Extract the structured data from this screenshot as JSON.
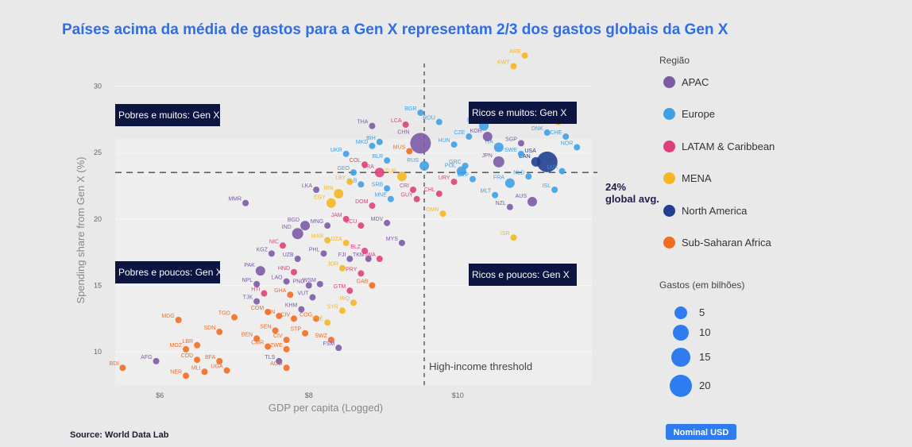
{
  "title": "Países acima da média de gastos para a Gen X representam 2/3 dos gastos globais da Gen X",
  "source": "Source: World Data Lab",
  "nominal_button": "Nominal USD",
  "quadrants": {
    "top_left": "Pobres e muitos: Gen X",
    "top_right": "Ricos e muitos: Gen X",
    "bottom_left": "Pobres e poucos: Gen X",
    "bottom_right": "Ricos e poucos: Gen X"
  },
  "annotations": {
    "avg_line1": "24%",
    "avg_line2": "global avg.",
    "threshold": "High-income threshold"
  },
  "legend": {
    "region_title": "Região",
    "size_title": "Gastos (em bilhões)",
    "regions": [
      {
        "name": "APAC",
        "color": "#7b5aa6"
      },
      {
        "name": "Europe",
        "color": "#3ea0e6"
      },
      {
        "name": "LATAM & Caribbean",
        "color": "#e0407a"
      },
      {
        "name": "MENA",
        "color": "#f5b623"
      },
      {
        "name": "North America",
        "color": "#1f3f8f"
      },
      {
        "name": "Sub-Saharan Africa",
        "color": "#f26b21"
      }
    ],
    "sizes": [
      "5",
      "10",
      "15",
      "20"
    ]
  },
  "chart_data": {
    "type": "scatter",
    "xlabel": "GDP per capita (Logged)",
    "ylabel": "Spending share from Gen X (%)",
    "xlim": [
      5.4,
      11.8
    ],
    "ylim": [
      7.5,
      32
    ],
    "xticks": [
      {
        "v": 6,
        "label": "$6"
      },
      {
        "v": 8,
        "label": "$8"
      },
      {
        "v": 10,
        "label": "$10"
      }
    ],
    "yticks": [
      10,
      15,
      20,
      25,
      30
    ],
    "avg_y": 23.5,
    "threshold_x": 9.55,
    "points": [
      {
        "l": "ARE",
        "x": 10.9,
        "y": 32.3,
        "r": "MENA",
        "s": 1
      },
      {
        "l": "KWT",
        "x": 10.75,
        "y": 31.5,
        "r": "MENA",
        "s": 1
      },
      {
        "l": "QAT",
        "x": 11.35,
        "y": 27.3,
        "r": "MENA",
        "s": 1
      },
      {
        "l": "DNK",
        "x": 11.2,
        "y": 26.5,
        "r": "Europe",
        "s": 1
      },
      {
        "l": "CHE",
        "x": 11.45,
        "y": 26.2,
        "r": "Europe",
        "s": 1
      },
      {
        "l": "NOR",
        "x": 11.6,
        "y": 25.4,
        "r": "Europe",
        "s": 1
      },
      {
        "l": "USA",
        "x": 11.2,
        "y": 24.3,
        "r": "North America",
        "s": 5
      },
      {
        "l": "CAN",
        "x": 11.05,
        "y": 24.3,
        "r": "North America",
        "s": 2
      },
      {
        "l": "LUX",
        "x": 11.4,
        "y": 23.6,
        "r": "Europe",
        "s": 1
      },
      {
        "l": "ISL",
        "x": 11.3,
        "y": 22.2,
        "r": "Europe",
        "s": 1
      },
      {
        "l": "AUS",
        "x": 11.0,
        "y": 21.3,
        "r": "APAC",
        "s": 2
      },
      {
        "l": "NZL",
        "x": 10.7,
        "y": 20.9,
        "r": "APAC",
        "s": 1
      },
      {
        "l": "ISR",
        "x": 10.75,
        "y": 18.6,
        "r": "MENA",
        "s": 1
      },
      {
        "l": "NLD",
        "x": 10.95,
        "y": 23.2,
        "r": "Europe",
        "s": 1
      },
      {
        "l": "FRA",
        "x": 10.7,
        "y": 22.7,
        "r": "Europe",
        "s": 2
      },
      {
        "l": "MLT",
        "x": 10.5,
        "y": 21.8,
        "r": "Europe",
        "s": 1
      },
      {
        "l": "ITA",
        "x": 10.55,
        "y": 25.4,
        "r": "Europe",
        "s": 2
      },
      {
        "l": "SGP",
        "x": 10.85,
        "y": 25.7,
        "r": "APAC",
        "s": 1
      },
      {
        "l": "SWE",
        "x": 10.85,
        "y": 24.9,
        "r": "Europe",
        "s": 1
      },
      {
        "l": "JPN",
        "x": 10.55,
        "y": 24.3,
        "r": "APAC",
        "s": 3
      },
      {
        "l": "KOR",
        "x": 10.4,
        "y": 26.2,
        "r": "APAC",
        "s": 2
      },
      {
        "l": "ESP",
        "x": 10.35,
        "y": 27.0,
        "r": "Europe",
        "s": 2
      },
      {
        "l": "CZE",
        "x": 10.15,
        "y": 26.2,
        "r": "Europe",
        "s": 1
      },
      {
        "l": "HUN",
        "x": 9.95,
        "y": 25.6,
        "r": "Europe",
        "s": 1
      },
      {
        "l": "POL",
        "x": 10.05,
        "y": 23.6,
        "r": "Europe",
        "s": 2
      },
      {
        "l": "CYP",
        "x": 10.2,
        "y": 23.0,
        "r": "Europe",
        "s": 1
      },
      {
        "l": "GRC",
        "x": 10.1,
        "y": 24.0,
        "r": "Europe",
        "s": 1
      },
      {
        "l": "URY",
        "x": 9.95,
        "y": 22.8,
        "r": "LATAM & Caribbean",
        "s": 1
      },
      {
        "l": "CHL",
        "x": 9.75,
        "y": 21.9,
        "r": "LATAM & Caribbean",
        "s": 1
      },
      {
        "l": "OMN",
        "x": 9.8,
        "y": 20.4,
        "r": "MENA",
        "s": 1
      },
      {
        "l": "RUS",
        "x": 9.55,
        "y": 24.0,
        "r": "Europe",
        "s": 2
      },
      {
        "l": "ROU",
        "x": 9.75,
        "y": 27.3,
        "r": "Europe",
        "s": 1
      },
      {
        "l": "BGR",
        "x": 9.5,
        "y": 28.0,
        "r": "Europe",
        "s": 1
      },
      {
        "l": "LCA",
        "x": 9.3,
        "y": 27.1,
        "r": "LATAM & Caribbean",
        "s": 1
      },
      {
        "l": "CHN",
        "x": 9.5,
        "y": 25.7,
        "r": "APAC",
        "s": 5
      },
      {
        "l": "MUS",
        "x": 9.35,
        "y": 25.1,
        "r": "Sub-Saharan Africa",
        "s": 1
      },
      {
        "l": "TUR",
        "x": 9.25,
        "y": 23.2,
        "r": "MENA",
        "s": 2
      },
      {
        "l": "CRI",
        "x": 9.4,
        "y": 22.2,
        "r": "LATAM & Caribbean",
        "s": 1
      },
      {
        "l": "GUY",
        "x": 9.45,
        "y": 21.5,
        "r": "LATAM & Caribbean",
        "s": 1
      },
      {
        "l": "MNE",
        "x": 9.1,
        "y": 21.5,
        "r": "Europe",
        "s": 1
      },
      {
        "l": "SRB",
        "x": 9.05,
        "y": 22.3,
        "r": "Europe",
        "s": 1
      },
      {
        "l": "BLR",
        "x": 9.05,
        "y": 24.4,
        "r": "Europe",
        "s": 1
      },
      {
        "l": "BIH",
        "x": 8.95,
        "y": 25.8,
        "r": "Europe",
        "s": 1
      },
      {
        "l": "MKD",
        "x": 8.85,
        "y": 25.5,
        "r": "Europe",
        "s": 1
      },
      {
        "l": "THA",
        "x": 8.85,
        "y": 27.0,
        "r": "APAC",
        "s": 1
      },
      {
        "l": "UKR",
        "x": 8.5,
        "y": 24.9,
        "r": "Europe",
        "s": 1
      },
      {
        "l": "COL",
        "x": 8.75,
        "y": 24.1,
        "r": "LATAM & Caribbean",
        "s": 1
      },
      {
        "l": "BRA",
        "x": 8.95,
        "y": 23.5,
        "r": "LATAM & Caribbean",
        "s": 2
      },
      {
        "l": "GEO",
        "x": 8.6,
        "y": 23.5,
        "r": "Europe",
        "s": 1
      },
      {
        "l": "ALB",
        "x": 8.7,
        "y": 22.6,
        "r": "Europe",
        "s": 1
      },
      {
        "l": "LBY",
        "x": 8.55,
        "y": 22.8,
        "r": "MENA",
        "s": 1
      },
      {
        "l": "DOM",
        "x": 8.85,
        "y": 21.0,
        "r": "LATAM & Caribbean",
        "s": 1
      },
      {
        "l": "ECU",
        "x": 8.7,
        "y": 19.5,
        "r": "LATAM & Caribbean",
        "s": 1
      },
      {
        "l": "MDV",
        "x": 9.05,
        "y": 19.7,
        "r": "APAC",
        "s": 1
      },
      {
        "l": "MYS",
        "x": 9.25,
        "y": 18.2,
        "r": "APAC",
        "s": 1
      },
      {
        "l": "MMR",
        "x": 7.15,
        "y": 21.2,
        "r": "APAC",
        "s": 1
      },
      {
        "l": "LKA",
        "x": 8.1,
        "y": 22.2,
        "r": "APAC",
        "s": 1
      },
      {
        "l": "IRN",
        "x": 8.4,
        "y": 21.9,
        "r": "MENA",
        "s": 2
      },
      {
        "l": "EGY",
        "x": 8.3,
        "y": 21.2,
        "r": "MENA",
        "s": 2
      },
      {
        "l": "JAM",
        "x": 8.5,
        "y": 20.0,
        "r": "LATAM & Caribbean",
        "s": 1
      },
      {
        "l": "BGD",
        "x": 7.95,
        "y": 19.5,
        "r": "APAC",
        "s": 2
      },
      {
        "l": "IND",
        "x": 7.85,
        "y": 18.9,
        "r": "APAC",
        "s": 3
      },
      {
        "l": "MNG",
        "x": 8.25,
        "y": 19.5,
        "r": "APAC",
        "s": 1
      },
      {
        "l": "MAR",
        "x": 8.25,
        "y": 18.4,
        "r": "MENA",
        "s": 1
      },
      {
        "l": "DZA",
        "x": 8.5,
        "y": 18.2,
        "r": "MENA",
        "s": 1
      },
      {
        "l": "BLZ",
        "x": 8.75,
        "y": 17.6,
        "r": "LATAM & Caribbean",
        "s": 1
      },
      {
        "l": "NIC",
        "x": 7.65,
        "y": 18.0,
        "r": "LATAM & Caribbean",
        "s": 1
      },
      {
        "l": "KGZ",
        "x": 7.5,
        "y": 17.4,
        "r": "APAC",
        "s": 1
      },
      {
        "l": "UZB",
        "x": 7.85,
        "y": 17.0,
        "r": "APAC",
        "s": 1
      },
      {
        "l": "PHL",
        "x": 8.2,
        "y": 17.4,
        "r": "APAC",
        "s": 1
      },
      {
        "l": "FJI",
        "x": 8.55,
        "y": 17.0,
        "r": "APAC",
        "s": 1
      },
      {
        "l": "TKM",
        "x": 8.8,
        "y": 17.0,
        "r": "APAC",
        "s": 1
      },
      {
        "l": "IWA",
        "x": 8.95,
        "y": 17.0,
        "r": "LATAM & Caribbean",
        "s": 1
      },
      {
        "l": "PAK",
        "x": 7.35,
        "y": 16.1,
        "r": "APAC",
        "s": 2
      },
      {
        "l": "HND",
        "x": 7.8,
        "y": 16.0,
        "r": "LATAM & Caribbean",
        "s": 1
      },
      {
        "l": "JOR",
        "x": 8.45,
        "y": 16.3,
        "r": "MENA",
        "s": 1
      },
      {
        "l": "PRY",
        "x": 8.7,
        "y": 15.9,
        "r": "LATAM & Caribbean",
        "s": 1
      },
      {
        "l": "NPL",
        "x": 7.3,
        "y": 15.1,
        "r": "APAC",
        "s": 1
      },
      {
        "l": "LAO",
        "x": 7.7,
        "y": 15.3,
        "r": "APAC",
        "s": 1
      },
      {
        "l": "PNG",
        "x": 8.0,
        "y": 15.0,
        "r": "APAC",
        "s": 1
      },
      {
        "l": "WSM",
        "x": 8.15,
        "y": 15.1,
        "r": "APAC",
        "s": 1
      },
      {
        "l": "GAB",
        "x": 8.85,
        "y": 15.0,
        "r": "Sub-Saharan Africa",
        "s": 1
      },
      {
        "l": "GTM",
        "x": 8.55,
        "y": 14.6,
        "r": "LATAM & Caribbean",
        "s": 1
      },
      {
        "l": "HTI",
        "x": 7.4,
        "y": 14.4,
        "r": "LATAM & Caribbean",
        "s": 1
      },
      {
        "l": "GHA",
        "x": 7.75,
        "y": 14.3,
        "r": "Sub-Saharan Africa",
        "s": 1
      },
      {
        "l": "VUT",
        "x": 8.05,
        "y": 14.1,
        "r": "APAC",
        "s": 1
      },
      {
        "l": "TJK",
        "x": 7.3,
        "y": 13.8,
        "r": "APAC",
        "s": 1
      },
      {
        "l": "IRQ",
        "x": 8.6,
        "y": 13.7,
        "r": "MENA",
        "s": 1
      },
      {
        "l": "KHM",
        "x": 7.9,
        "y": 13.2,
        "r": "APAC",
        "s": 1
      },
      {
        "l": "COM",
        "x": 7.45,
        "y": 13.0,
        "r": "Sub-Saharan Africa",
        "s": 1
      },
      {
        "l": "GIN",
        "x": 7.6,
        "y": 12.7,
        "r": "Sub-Saharan Africa",
        "s": 1
      },
      {
        "l": "CIV",
        "x": 7.8,
        "y": 12.5,
        "r": "Sub-Saharan Africa",
        "s": 1
      },
      {
        "l": "SYR",
        "x": 8.45,
        "y": 13.1,
        "r": "MENA",
        "s": 1
      },
      {
        "l": "COG",
        "x": 8.1,
        "y": 12.5,
        "r": "Sub-Saharan Africa",
        "s": 1
      },
      {
        "l": "PSE",
        "x": 8.25,
        "y": 12.2,
        "r": "MENA",
        "s": 1
      },
      {
        "l": "TGO",
        "x": 7.0,
        "y": 12.6,
        "r": "Sub-Saharan Africa",
        "s": 1
      },
      {
        "l": "MDG",
        "x": 6.25,
        "y": 12.4,
        "r": "Sub-Saharan Africa",
        "s": 1
      },
      {
        "l": "SDN",
        "x": 6.8,
        "y": 11.5,
        "r": "Sub-Saharan Africa",
        "s": 1
      },
      {
        "l": "SEN",
        "x": 7.55,
        "y": 11.6,
        "r": "Sub-Saharan Africa",
        "s": 1
      },
      {
        "l": "STP",
        "x": 7.95,
        "y": 11.4,
        "r": "Sub-Saharan Africa",
        "s": 1
      },
      {
        "l": "BEN",
        "x": 7.3,
        "y": 11.0,
        "r": "Sub-Saharan Africa",
        "s": 1
      },
      {
        "l": "CIV2",
        "x": 7.7,
        "y": 10.9,
        "r": "Sub-Saharan Africa",
        "s": 1
      },
      {
        "l": "SWZ",
        "x": 8.3,
        "y": 10.9,
        "r": "Sub-Saharan Africa",
        "s": 1
      },
      {
        "l": "CMR",
        "x": 7.45,
        "y": 10.4,
        "r": "Sub-Saharan Africa",
        "s": 1
      },
      {
        "l": "ZWE",
        "x": 7.7,
        "y": 10.2,
        "r": "Sub-Saharan Africa",
        "s": 1
      },
      {
        "l": "FSM",
        "x": 8.4,
        "y": 10.3,
        "r": "APAC",
        "s": 1
      },
      {
        "l": "LBR",
        "x": 6.5,
        "y": 10.5,
        "r": "Sub-Saharan Africa",
        "s": 1
      },
      {
        "l": "MOZ",
        "x": 6.35,
        "y": 10.2,
        "r": "Sub-Saharan Africa",
        "s": 1
      },
      {
        "l": "COD",
        "x": 6.5,
        "y": 9.4,
        "r": "Sub-Saharan Africa",
        "s": 1
      },
      {
        "l": "BFA",
        "x": 6.8,
        "y": 9.3,
        "r": "Sub-Saharan Africa",
        "s": 1
      },
      {
        "l": "TLS",
        "x": 7.6,
        "y": 9.3,
        "r": "APAC",
        "s": 1
      },
      {
        "l": "AGO",
        "x": 7.7,
        "y": 8.8,
        "r": "Sub-Saharan Africa",
        "s": 1
      },
      {
        "l": "UGA",
        "x": 6.9,
        "y": 8.6,
        "r": "Sub-Saharan Africa",
        "s": 1
      },
      {
        "l": "MLI",
        "x": 6.6,
        "y": 8.5,
        "r": "Sub-Saharan Africa",
        "s": 1
      },
      {
        "l": "NER",
        "x": 6.35,
        "y": 8.2,
        "r": "Sub-Saharan Africa",
        "s": 1
      },
      {
        "l": "AFG",
        "x": 5.95,
        "y": 9.3,
        "r": "APAC",
        "s": 1
      },
      {
        "l": "BDI",
        "x": 5.5,
        "y": 8.8,
        "r": "Sub-Saharan Africa",
        "s": 1
      }
    ]
  }
}
